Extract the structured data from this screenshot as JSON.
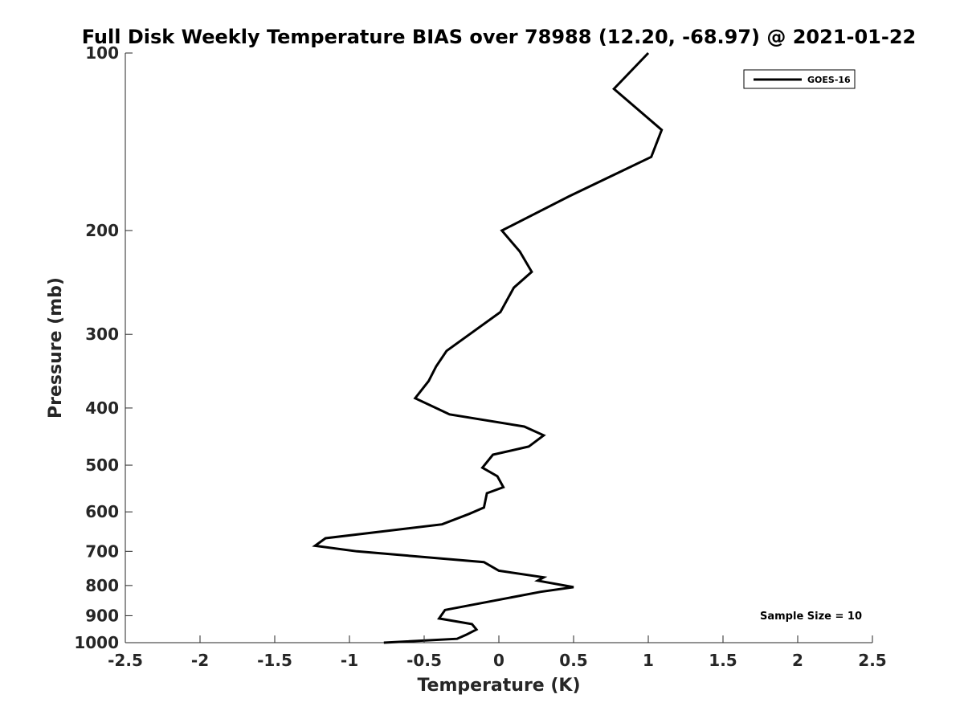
{
  "chart_data": {
    "type": "line",
    "title": "Full Disk Weekly Temperature BIAS over 78988 (12.20, -68.97) @ 2021-01-22",
    "xlabel": "Temperature (K)",
    "ylabel": "Pressure (mb)",
    "xlim": [
      -2.5,
      2.5
    ],
    "ylim": [
      100,
      1000
    ],
    "y_scale": "log",
    "y_reversed": true,
    "grid": false,
    "x_ticks": [
      -2.5,
      -2,
      -1.5,
      -1,
      -0.5,
      0,
      0.5,
      1,
      1.5,
      2,
      2.5
    ],
    "x_tick_labels": [
      "-2.5",
      "-2",
      "-1.5",
      "-1",
      "-0.5",
      "0",
      "0.5",
      "1",
      "1.5",
      "2",
      "2.5"
    ],
    "y_ticks": [
      100,
      200,
      300,
      400,
      500,
      600,
      700,
      800,
      900,
      1000
    ],
    "y_tick_labels": [
      "100",
      "200",
      "300",
      "400",
      "500",
      "600",
      "700",
      "800",
      "900",
      "1000"
    ],
    "legend_position": "top-right",
    "series": [
      {
        "name": "GOES-16",
        "color": "#000000",
        "points": [
          [
            1.0,
            100
          ],
          [
            0.77,
            115
          ],
          [
            1.09,
            135
          ],
          [
            1.02,
            150
          ],
          [
            0.47,
            175
          ],
          [
            0.02,
            200
          ],
          [
            0.14,
            217
          ],
          [
            0.22,
            235
          ],
          [
            0.1,
            250
          ],
          [
            0.01,
            275
          ],
          [
            -0.35,
            320
          ],
          [
            -0.42,
            340
          ],
          [
            -0.47,
            360
          ],
          [
            -0.56,
            385
          ],
          [
            -0.33,
            410
          ],
          [
            0.17,
            430
          ],
          [
            0.3,
            445
          ],
          [
            0.2,
            465
          ],
          [
            -0.04,
            480
          ],
          [
            -0.11,
            505
          ],
          [
            -0.01,
            522
          ],
          [
            0.03,
            545
          ],
          [
            -0.08,
            558
          ],
          [
            -0.1,
            590
          ],
          [
            -0.2,
            605
          ],
          [
            -0.38,
            630
          ],
          [
            -1.16,
            665
          ],
          [
            -1.23,
            685
          ],
          [
            -0.95,
            700
          ],
          [
            -0.1,
            730
          ],
          [
            0.0,
            755
          ],
          [
            0.3,
            775
          ],
          [
            0.26,
            785
          ],
          [
            0.5,
            805
          ],
          [
            0.28,
            820
          ],
          [
            -0.36,
            880
          ],
          [
            -0.4,
            910
          ],
          [
            -0.18,
            930
          ],
          [
            -0.15,
            950
          ],
          [
            -0.22,
            970
          ],
          [
            -0.28,
            985
          ],
          [
            -0.77,
            1000
          ]
        ]
      }
    ],
    "annotations": [
      "Sample Size = 10"
    ]
  }
}
